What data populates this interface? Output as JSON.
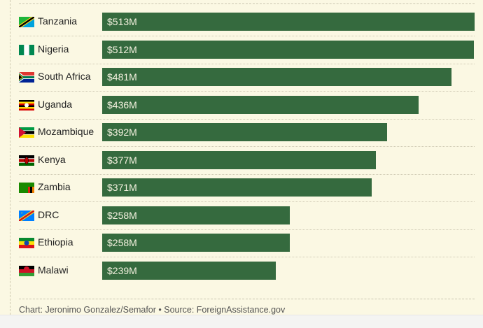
{
  "chart_data": {
    "type": "bar",
    "orientation": "horizontal",
    "categories": [
      "Tanzania",
      "Nigeria",
      "South Africa",
      "Uganda",
      "Mozambique",
      "Kenya",
      "Zambia",
      "DRC",
      "Ethiopia",
      "Malawi"
    ],
    "values": [
      513,
      512,
      481,
      436,
      392,
      377,
      371,
      258,
      258,
      239
    ],
    "value_labels": [
      "$513M",
      "$512M",
      "$481M",
      "$436M",
      "$392M",
      "$377M",
      "$371M",
      "$258M",
      "$258M",
      "$239M"
    ],
    "xlim": [
      0,
      513
    ],
    "unit": "$M",
    "bar_color": "#356a3e",
    "grid": false
  },
  "footer": "Chart: Jeronimo Gonzalez/Semafor • Source: ForeignAssistance.gov"
}
